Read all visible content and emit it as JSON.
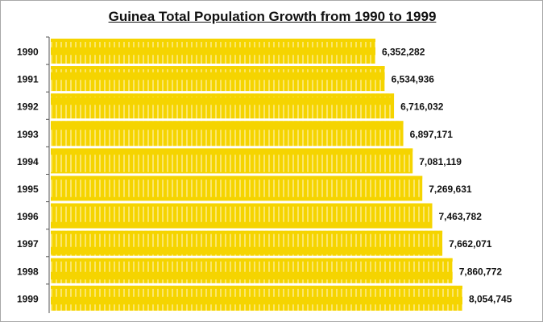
{
  "chart_data": {
    "type": "bar",
    "orientation": "horizontal",
    "title": "Guinea Total Population Growth from 1990 to 1999",
    "categories": [
      "1990",
      "1991",
      "1992",
      "1993",
      "1994",
      "1995",
      "1996",
      "1997",
      "1998",
      "1999"
    ],
    "values": [
      6352282,
      6534936,
      6716032,
      6897171,
      7081119,
      7269631,
      7463782,
      7662071,
      7860772,
      8054745
    ],
    "data_labels": [
      "6,352,282",
      "6,534,936",
      "6,716,032",
      "6,897,171",
      "7,081,119",
      "7,269,631",
      "7,463,782",
      "7,662,071",
      "7,860,772",
      "8,054,745"
    ],
    "xlim": [
      0,
      8054745
    ],
    "grid": false,
    "legend": "none",
    "colors": {
      "bar": "#f5d400",
      "bar_stripe": "#fbe66a",
      "text": "#111111"
    }
  }
}
